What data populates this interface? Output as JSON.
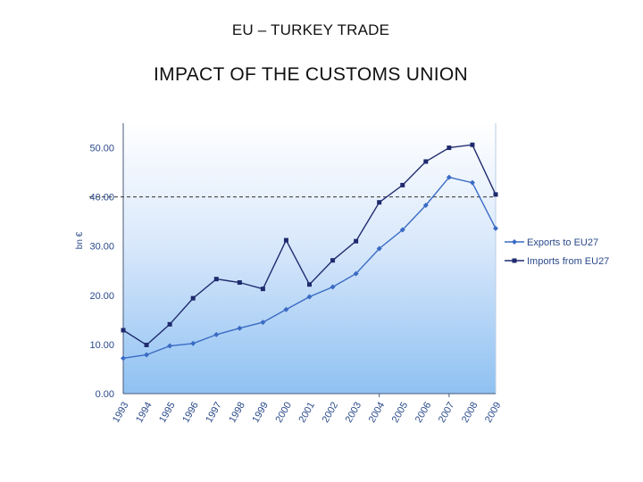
{
  "slide": {
    "title": "EU – TURKEY TRADE",
    "subtitle": "IMPACT OF THE CUSTOMS UNION"
  },
  "chart_data": {
    "type": "line",
    "title": "",
    "xlabel": "",
    "ylabel": "bn €",
    "x": [
      "1993",
      "1994",
      "1995",
      "1996",
      "1997",
      "1998",
      "1999",
      "2000",
      "2001",
      "2002",
      "2003",
      "2004",
      "2005",
      "2006",
      "2007",
      "2008",
      "2009"
    ],
    "yticks": [
      "0.00",
      "10.00",
      "20.00",
      "30.00",
      "40.00",
      "50.00"
    ],
    "ylim": [
      0,
      55
    ],
    "reference_line": 40,
    "series": [
      {
        "name": "Exports to EU27",
        "color": "#3a6bc4",
        "marker": "diamond",
        "values": [
          7.2,
          7.9,
          9.7,
          10.2,
          12.0,
          13.3,
          14.5,
          17.1,
          19.7,
          21.7,
          24.4,
          29.5,
          33.3,
          38.3,
          44.0,
          42.9,
          33.6
        ]
      },
      {
        "name": "Imports from EU27",
        "color": "#1f2a6e",
        "marker": "square",
        "values": [
          12.9,
          9.9,
          14.1,
          19.4,
          23.3,
          22.6,
          21.3,
          31.2,
          22.2,
          27.1,
          31.0,
          38.9,
          42.4,
          47.2,
          50.0,
          50.6,
          40.5
        ]
      }
    ],
    "grid": false,
    "legend_position": "right"
  }
}
